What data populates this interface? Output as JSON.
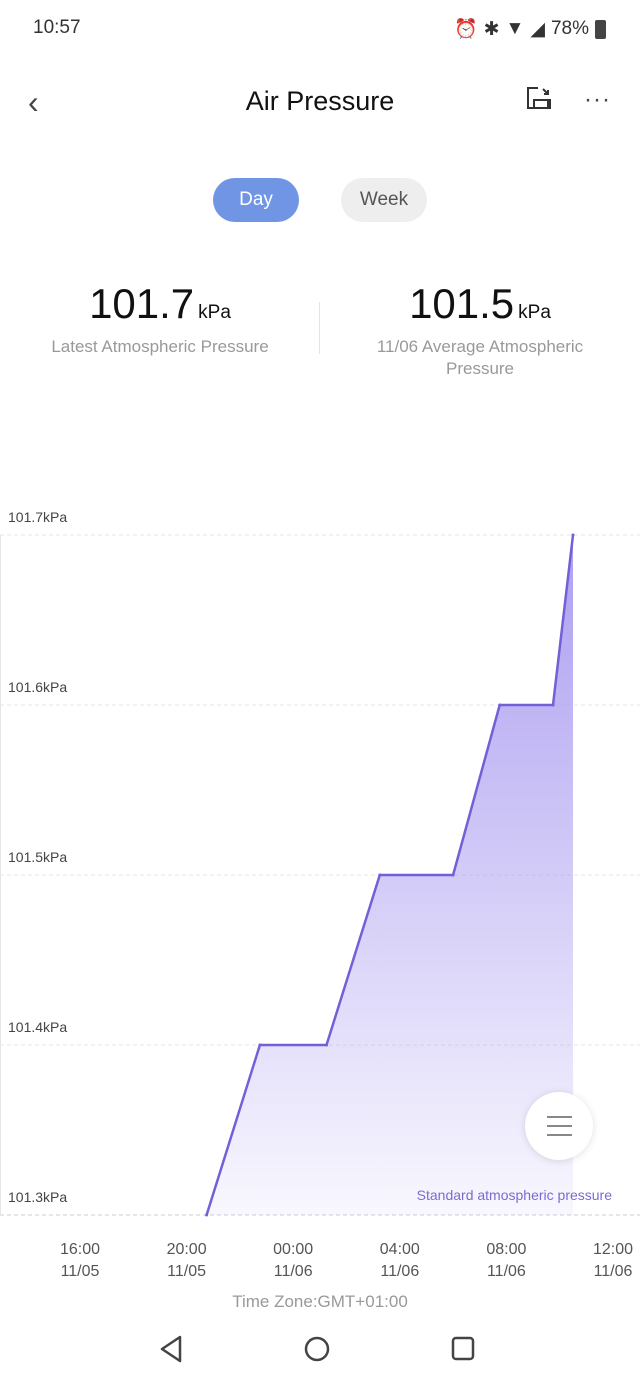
{
  "status_bar": {
    "time": "10:57",
    "battery": "78%",
    "icons": [
      "alarm-icon",
      "bluetooth-icon",
      "wifi-icon",
      "signal-icon",
      "battery-icon"
    ]
  },
  "header": {
    "title": "Air Pressure",
    "back_icon": "chevron-left-icon",
    "share_icon": "share-icon",
    "more_icon": "more-icon"
  },
  "tabs": [
    {
      "label": "Day",
      "active": true
    },
    {
      "label": "Week",
      "active": false
    }
  ],
  "stats": [
    {
      "value": "101.7",
      "unit": "kPa",
      "label": "Latest Atmospheric Pressure"
    },
    {
      "value": "101.5",
      "unit": "kPa",
      "label": "11/06 Average Atmospheric Pressure"
    }
  ],
  "chart_data": {
    "type": "area",
    "y_ticks": [
      "101.7kPa",
      "101.6kPa",
      "101.5kPa",
      "101.4kPa",
      "101.3kPa"
    ],
    "ylim": [
      101.3,
      101.7
    ],
    "x_ticks": [
      {
        "time": "16:00",
        "date": "11/05"
      },
      {
        "time": "20:00",
        "date": "11/05"
      },
      {
        "time": "00:00",
        "date": "11/06"
      },
      {
        "time": "04:00",
        "date": "11/06"
      },
      {
        "time": "08:00",
        "date": "11/06"
      },
      {
        "time": "12:00",
        "date": "11/06"
      }
    ],
    "points": [
      [
        "11/05 20:45",
        101.3
      ],
      [
        "11/05 22:45",
        101.4
      ],
      [
        "11/06 01:15",
        101.4
      ],
      [
        "11/06 03:15",
        101.5
      ],
      [
        "11/06 06:00",
        101.5
      ],
      [
        "11/06 07:45",
        101.6
      ],
      [
        "11/06 09:45",
        101.6
      ],
      [
        "11/06 10:30",
        101.7
      ]
    ],
    "grid": true,
    "line_color": "#7460d6",
    "fill_color": "#a99af0",
    "legend": "Standard atmospheric pressure",
    "legend_placement": "bottom-right"
  },
  "timezone": "Time Zone:GMT+01:00"
}
